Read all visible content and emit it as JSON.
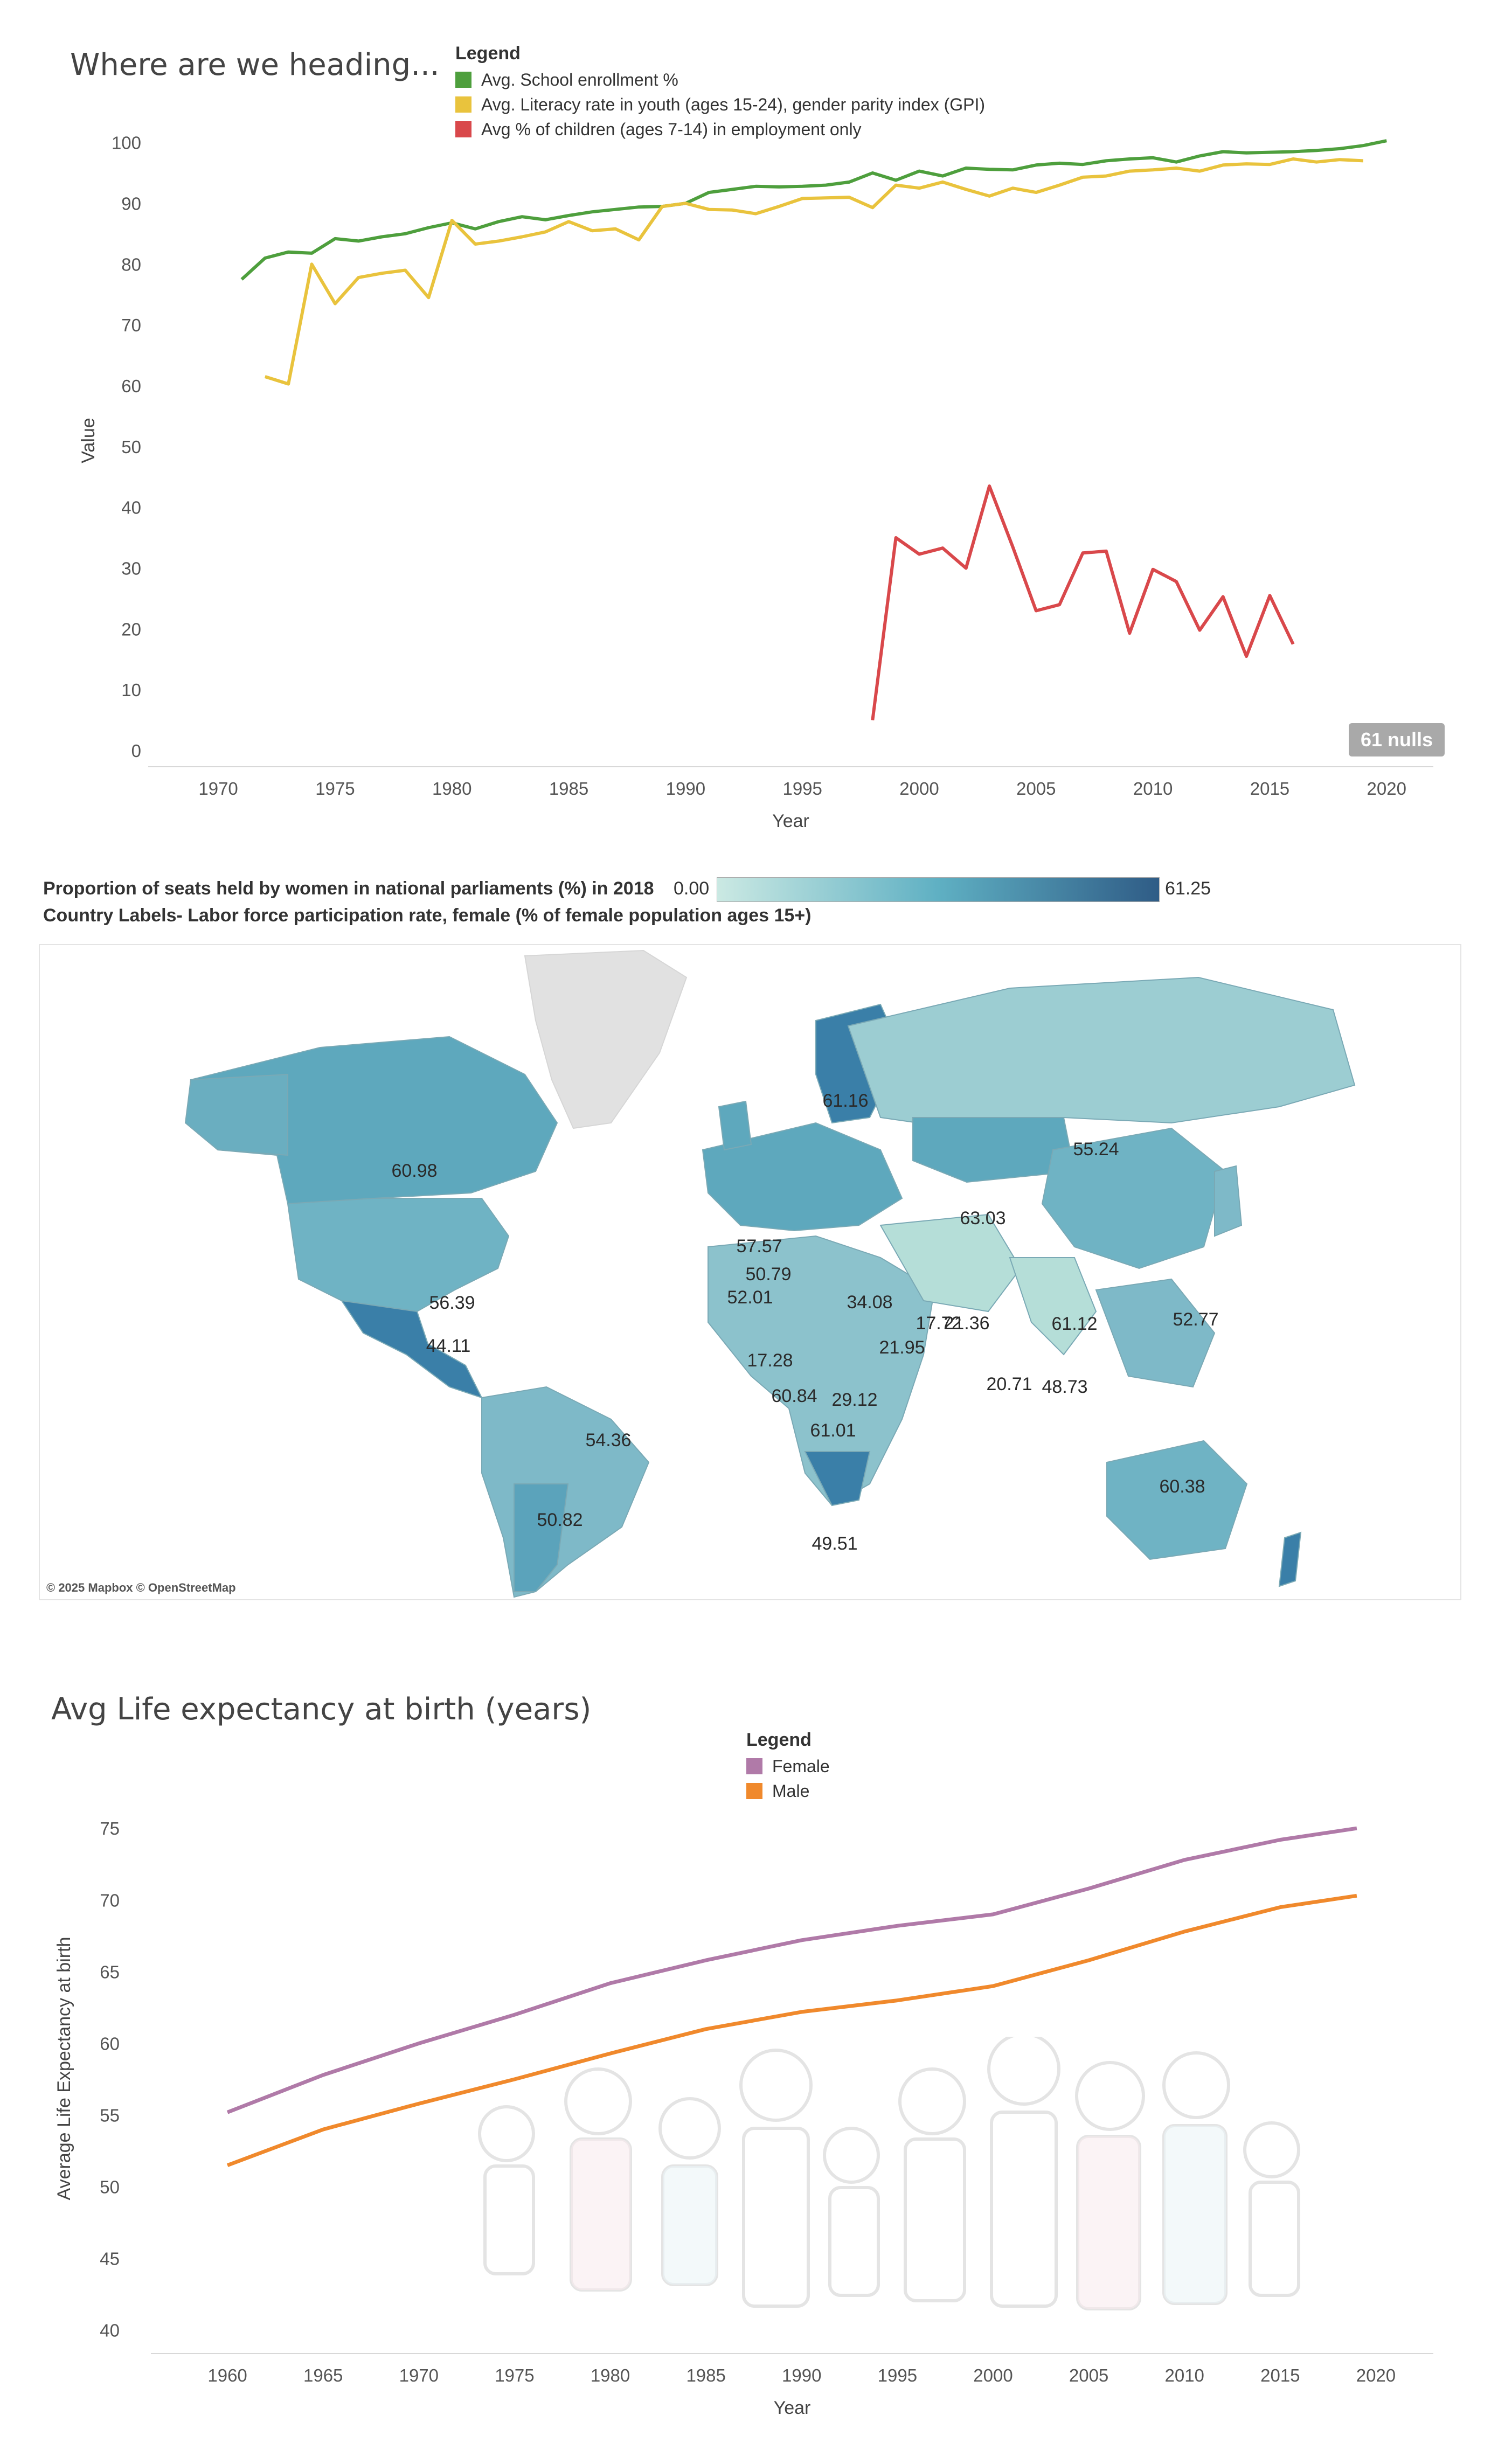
{
  "top_chart": {
    "title": "Where are we heading...",
    "legend_title": "Legend",
    "null_badge": "61 nulls"
  },
  "map": {
    "caption_color": "Proportion of seats held by women in national parliaments (%) in 2018",
    "caption_labels": "Country Labels- Labor force participation rate, female (% of female population ages 15+)",
    "scale_min": "0.00",
    "scale_max": "61.25",
    "attribution": "© 2025 Mapbox © OpenStreetMap",
    "color_low": "#cbe9e3",
    "color_high": "#2f5c86",
    "land_color": "#8cc2cc",
    "greenland_color": "#e1e1e1",
    "labels": [
      "61.16",
      "55.24",
      "60.98",
      "57.57",
      "50.79",
      "63.03",
      "52.01",
      "34.08",
      "56.39",
      "17.72",
      "21.36",
      "61.12",
      "52.77",
      "17.28",
      "21.95",
      "44.11",
      "60.84",
      "29.12",
      "20.71",
      "48.73",
      "61.01",
      "54.36",
      "60.38",
      "50.82",
      "49.51"
    ]
  },
  "life_chart": {
    "title": "Avg Life expectancy at birth (years)",
    "legend_title": "Legend"
  },
  "chart_data": [
    {
      "type": "line",
      "title": "Where are we heading...",
      "xlabel": "Year",
      "ylabel": "Value",
      "xlim": [
        1967,
        2022
      ],
      "ylim": [
        0,
        102
      ],
      "xticks": [
        1970,
        1975,
        1980,
        1985,
        1990,
        1995,
        2000,
        2005,
        2010,
        2015,
        2020
      ],
      "yticks": [
        0,
        10,
        20,
        30,
        40,
        50,
        60,
        70,
        80,
        90,
        100
      ],
      "grid": false,
      "legend_position": "top",
      "series": [
        {
          "name": "Avg. School enrollment %",
          "color": "#4e9f3d",
          "x": [
            1971,
            1972,
            1973,
            1974,
            1975,
            1976,
            1977,
            1978,
            1979,
            1980,
            1981,
            1982,
            1983,
            1984,
            1985,
            1986,
            1987,
            1988,
            1989,
            1990,
            1991,
            1992,
            1993,
            1994,
            1995,
            1996,
            1997,
            1998,
            1999,
            2000,
            2001,
            2002,
            2003,
            2004,
            2005,
            2006,
            2007,
            2008,
            2009,
            2010,
            2011,
            2012,
            2013,
            2014,
            2015,
            2016,
            2017,
            2018,
            2019,
            2020
          ],
          "values": [
            77.5,
            81,
            82,
            81.8,
            84.2,
            83.8,
            84.5,
            85,
            86,
            86.8,
            85.8,
            87,
            87.8,
            87.3,
            88,
            88.6,
            89,
            89.4,
            89.5,
            90,
            91.8,
            92.3,
            92.8,
            92.7,
            92.8,
            93,
            93.5,
            95,
            93.8,
            95.3,
            94.5,
            95.8,
            95.6,
            95.5,
            96.3,
            96.6,
            96.4,
            97,
            97.3,
            97.5,
            96.8,
            97.8,
            98.5,
            98.3,
            98.4,
            98.5,
            98.7,
            99,
            99.5,
            100.3
          ]
        },
        {
          "name": "Avg. Literacy rate in youth (ages 15-24), gender parity index (GPI)",
          "color": "#e9c33d",
          "x": [
            1972,
            1973,
            1974,
            1975,
            1976,
            1977,
            1978,
            1979,
            1980,
            1981,
            1982,
            1983,
            1984,
            1985,
            1986,
            1987,
            1988,
            1989,
            1990,
            1991,
            1992,
            1993,
            1994,
            1995,
            1996,
            1997,
            1998,
            1999,
            2000,
            2001,
            2002,
            2003,
            2004,
            2005,
            2006,
            2007,
            2008,
            2009,
            2010,
            2011,
            2012,
            2013,
            2014,
            2015,
            2016,
            2017,
            2018,
            2019
          ],
          "values": [
            61.5,
            60.3,
            80,
            73.5,
            77.8,
            78.5,
            79,
            74.5,
            87.2,
            83.3,
            83.8,
            84.5,
            85.3,
            87,
            85.5,
            85.8,
            84,
            89.5,
            90,
            89,
            88.9,
            88.3,
            89.5,
            90.8,
            90.9,
            91,
            89.3,
            93,
            92.5,
            93.5,
            92.3,
            91.2,
            92.5,
            91.8,
            93,
            94.3,
            94.5,
            95.3,
            95.5,
            95.8,
            95.3,
            96.3,
            96.5,
            96.4,
            97.3,
            96.8,
            97.2,
            97
          ]
        },
        {
          "name": "Avg % of children (ages 7-14) in employment only",
          "color": "#d9484b",
          "x": [
            1998,
            1999,
            2000,
            2001,
            2002,
            2003,
            2004,
            2005,
            2006,
            2007,
            2008,
            2009,
            2010,
            2011,
            2012,
            2013,
            2014,
            2015,
            2016
          ],
          "values": [
            5,
            35,
            32.3,
            33.3,
            30,
            43.5,
            33.5,
            23,
            24,
            32.5,
            32.8,
            19.3,
            29.8,
            27.8,
            19.8,
            25.3,
            15.5,
            25.5,
            17.5
          ]
        }
      ]
    },
    {
      "type": "line",
      "title": "Avg Life expectancy at birth (years)",
      "xlabel": "Year",
      "ylabel": "Average Life Expectancy at birth",
      "xlim": [
        1956,
        2023
      ],
      "ylim": [
        39.5,
        77
      ],
      "xticks": [
        1960,
        1965,
        1970,
        1975,
        1980,
        1985,
        1990,
        1995,
        2000,
        2005,
        2010,
        2015,
        2020
      ],
      "yticks": [
        40,
        45,
        50,
        55,
        60,
        65,
        70,
        75
      ],
      "grid": false,
      "legend_position": "top",
      "series": [
        {
          "name": "Female",
          "color": "#b07aa8",
          "x": [
            1960,
            1965,
            1970,
            1975,
            1980,
            1985,
            1990,
            1995,
            2000,
            2005,
            2010,
            2015,
            2019
          ],
          "values": [
            55.2,
            57.8,
            60,
            62,
            64.2,
            65.8,
            67.2,
            68.2,
            69,
            70.8,
            72.8,
            74.2,
            75
          ]
        },
        {
          "name": "Male",
          "color": "#f0892c",
          "x": [
            1960,
            1965,
            1970,
            1975,
            1980,
            1985,
            1990,
            1995,
            2000,
            2005,
            2010,
            2015,
            2019
          ],
          "values": [
            51.5,
            54,
            55.8,
            57.5,
            59.3,
            61,
            62.2,
            63,
            64,
            65.8,
            67.8,
            69.5,
            70.3
          ]
        }
      ]
    }
  ]
}
